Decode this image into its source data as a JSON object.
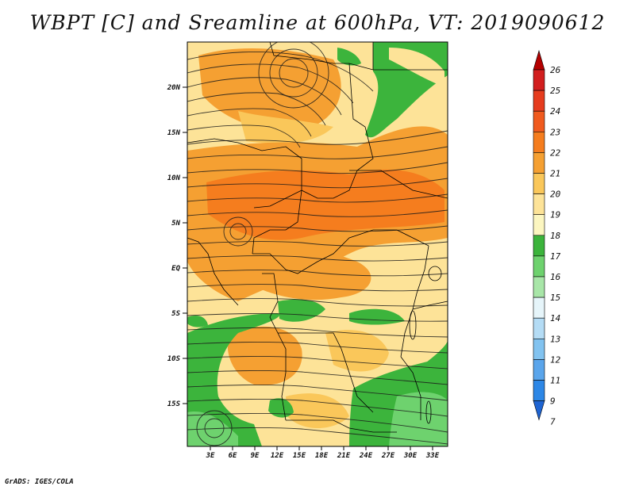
{
  "title": "WBPT [C] and Sreamline at 600hPa, VT: 2019090612",
  "credit": "GrADS: IGES/COLA",
  "map": {
    "region": "Central & East-Central Africa",
    "lat_labels": [
      "20N",
      "15N",
      "10N",
      "5N",
      "EQ",
      "5S",
      "10S",
      "15S"
    ],
    "lon_labels": [
      "3E",
      "6E",
      "9E",
      "12E",
      "15E",
      "18E",
      "21E",
      "24E",
      "27E",
      "30E",
      "33E"
    ]
  },
  "colorbar": {
    "labels": [
      "26",
      "25",
      "24",
      "23",
      "22",
      "21",
      "20",
      "19",
      "18",
      "17",
      "16",
      "15",
      "14",
      "13",
      "12",
      "11",
      "9",
      "7"
    ],
    "colors": [
      "#b40000",
      "#d21e1e",
      "#e63c1e",
      "#f05a1e",
      "#f57d1e",
      "#f5a032",
      "#fac75a",
      "#fde398",
      "#fcf6c0",
      "#3cb43c",
      "#6ed26e",
      "#a8e6a8",
      "#e6f5fa",
      "#b4dcf5",
      "#82c3f0",
      "#5aa5eb",
      "#2d87e6",
      "#1e64d2"
    ]
  }
}
